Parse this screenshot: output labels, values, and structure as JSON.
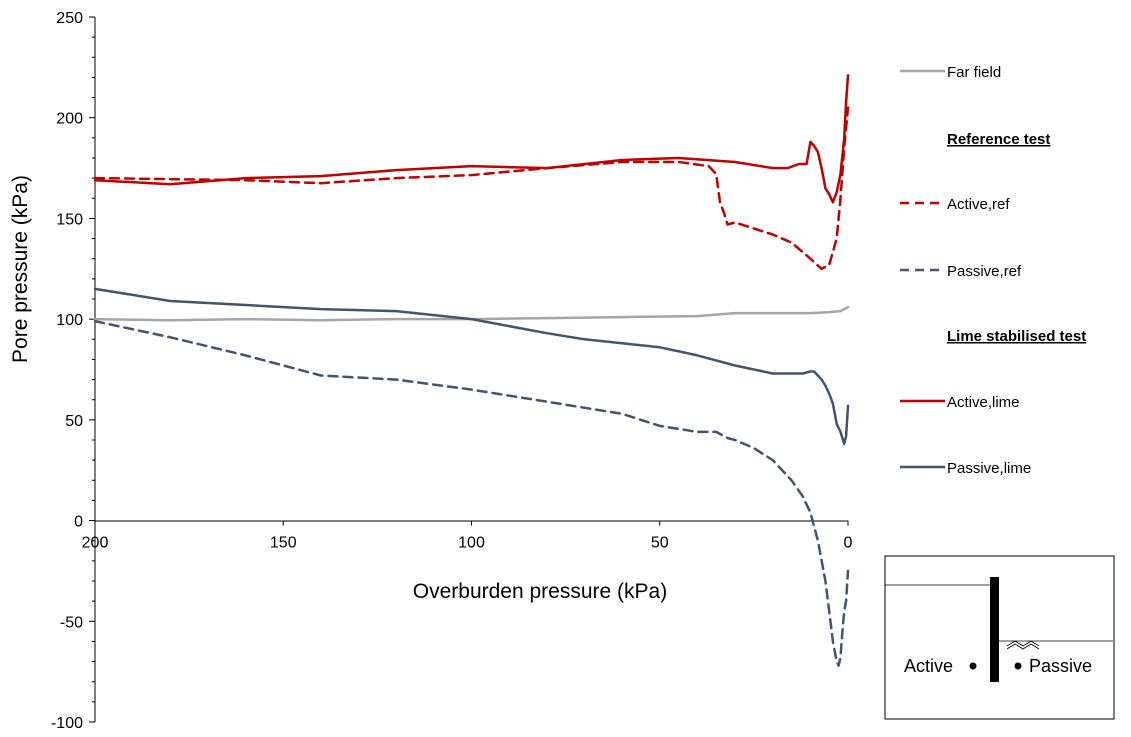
{
  "chart_data": {
    "type": "line",
    "xlabel": "Overburden pressure (kPa)",
    "ylabel": "Pore pressure (kPa)",
    "xlim": [
      200,
      0
    ],
    "x_reversed": true,
    "ylim": [
      -100,
      250
    ],
    "xticks": [
      "200",
      "150",
      "100",
      "50",
      "0"
    ],
    "yticks": [
      "250",
      "200",
      "150",
      "100",
      "50",
      "0",
      "-50",
      "-100"
    ],
    "grid": false,
    "legend_position": "right",
    "legend_groups": [
      {
        "heading": "",
        "entries": [
          "Far field"
        ]
      },
      {
        "heading": "Reference test",
        "entries": [
          "Active,ref",
          "Passive,ref"
        ]
      },
      {
        "heading": "Lime stabilised test",
        "entries": [
          "Active,lime",
          "Passive,lime"
        ]
      }
    ],
    "series": [
      {
        "name": "Far field",
        "color": "#A6A6A6",
        "dash": "solid",
        "x": [
          200,
          180,
          160,
          140,
          120,
          100,
          80,
          60,
          40,
          30,
          20,
          10,
          5,
          2,
          0
        ],
        "y": [
          100,
          99.5,
          100,
          99.5,
          100,
          100,
          100.5,
          101,
          101.5,
          103,
          103,
          103,
          103.5,
          104,
          106
        ]
      },
      {
        "name": "Active,ref",
        "color": "#C00000",
        "dash": "dashed",
        "x": [
          200,
          180,
          160,
          140,
          120,
          100,
          80,
          60,
          45,
          37,
          35,
          34,
          33,
          32,
          30,
          25,
          20,
          15,
          10,
          7,
          5,
          3,
          2,
          1,
          0
        ],
        "y": [
          170,
          169.5,
          169,
          167.5,
          170,
          171.5,
          175,
          178,
          178,
          176,
          172,
          158,
          153,
          147,
          148,
          145,
          142,
          138,
          130,
          125,
          127,
          140,
          160,
          185,
          205
        ]
      },
      {
        "name": "Passive,ref",
        "color": "#44546A",
        "dash": "dashed",
        "x": [
          200,
          180,
          160,
          140,
          120,
          100,
          80,
          60,
          50,
          40,
          35,
          32,
          30,
          25,
          20,
          15,
          12,
          10,
          8,
          6,
          5,
          4,
          3,
          2.5,
          2,
          1.5,
          1,
          0.5,
          0
        ],
        "y": [
          99,
          91,
          82,
          72,
          70,
          65,
          59,
          53,
          47,
          44,
          44,
          41,
          40,
          36,
          30,
          20,
          12,
          4,
          -10,
          -30,
          -45,
          -60,
          -70,
          -72,
          -68,
          -55,
          -45,
          -40,
          -25
        ]
      },
      {
        "name": "Active,lime",
        "color": "#C00000",
        "dash": "solid",
        "x": [
          200,
          180,
          160,
          140,
          120,
          100,
          80,
          60,
          45,
          30,
          20,
          16,
          13,
          11,
          10,
          9,
          8,
          7,
          6,
          5,
          4,
          3,
          2,
          1,
          0.5,
          0
        ],
        "y": [
          169,
          167,
          170,
          171,
          174,
          176,
          175,
          179,
          180,
          178,
          175,
          175,
          177,
          177,
          188,
          186,
          183,
          175,
          165,
          162,
          158,
          163,
          172,
          190,
          208,
          221
        ]
      },
      {
        "name": "Passive,lime",
        "color": "#44546A",
        "dash": "solid",
        "x": [
          200,
          180,
          160,
          140,
          120,
          100,
          80,
          70,
          60,
          50,
          40,
          30,
          20,
          12,
          10,
          9,
          8,
          7,
          6,
          5,
          4,
          3,
          2,
          1,
          0.5,
          0
        ],
        "y": [
          115,
          109,
          107,
          105,
          104,
          100,
          93,
          90,
          88,
          86,
          82,
          77,
          73,
          73,
          74,
          74,
          72,
          70,
          67,
          63,
          58,
          48,
          44,
          38,
          42,
          57
        ]
      }
    ]
  },
  "inset": {
    "active_label": "Active",
    "passive_label": "Passive"
  }
}
